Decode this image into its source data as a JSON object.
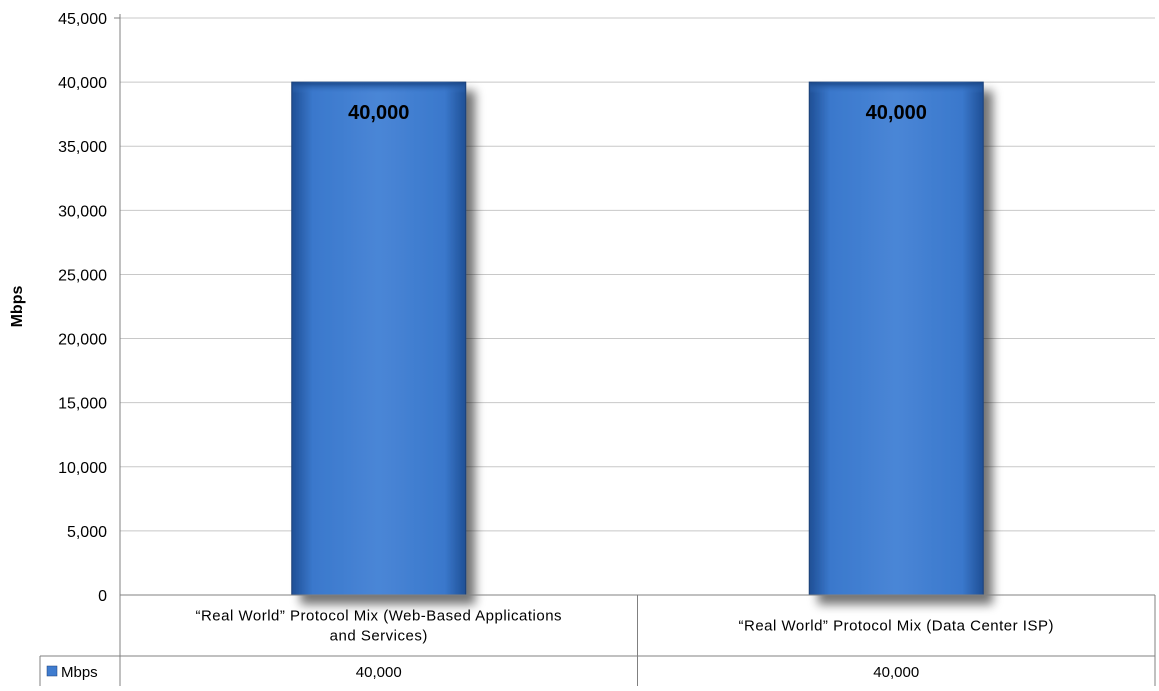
{
  "chart_data": {
    "type": "bar",
    "categories": [
      [
        "“Real World” Protocol Mix (Web-Based Applications",
        "and Services)"
      ],
      [
        "“Real World” Protocol Mix (Data Center ISP)"
      ]
    ],
    "series": [
      {
        "name": "Mbps",
        "values": [
          40000,
          40000
        ],
        "color": "#3f7ccf"
      }
    ],
    "data_labels": [
      "40,000",
      "40,000"
    ],
    "table_values": [
      "40,000",
      "40,000"
    ],
    "title": "",
    "xlabel": "",
    "ylabel": "Mbps",
    "ylim": [
      0,
      45000
    ],
    "yticks": [
      0,
      5000,
      10000,
      15000,
      20000,
      25000,
      30000,
      35000,
      40000,
      45000
    ],
    "ytick_labels": [
      "0",
      "5,000",
      "10,000",
      "15,000",
      "20,000",
      "25,000",
      "30,000",
      "35,000",
      "40,000",
      "45,000"
    ],
    "grid": true,
    "legend": "data-table-left"
  }
}
